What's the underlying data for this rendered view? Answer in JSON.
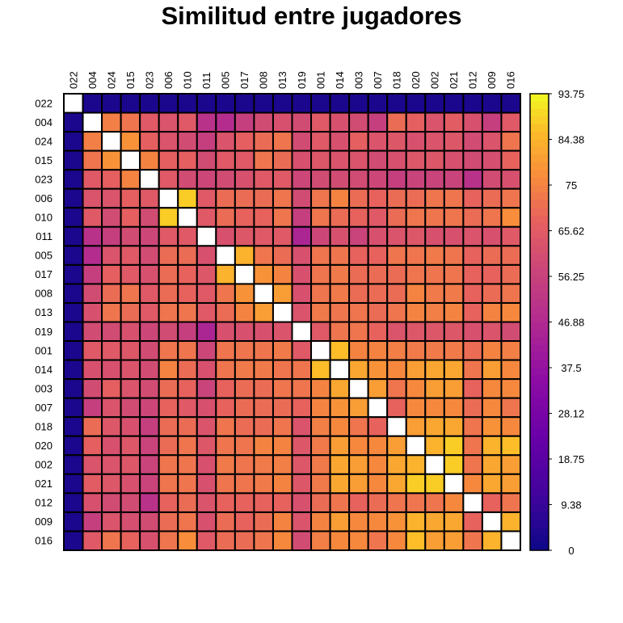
{
  "chart_data": {
    "type": "heatmap",
    "title": "Similitud entre jugadores",
    "labels": [
      "022",
      "004",
      "024",
      "015",
      "023",
      "006",
      "010",
      "011",
      "005",
      "017",
      "008",
      "013",
      "019",
      "001",
      "014",
      "003",
      "007",
      "018",
      "020",
      "002",
      "021",
      "012",
      "009",
      "016"
    ],
    "zlim": [
      0,
      93.75
    ],
    "colorbar_ticks": [
      "93.75",
      "84.38",
      "75",
      "65.62",
      "56.25",
      "46.88",
      "37.5",
      "28.12",
      "18.75",
      "9.38",
      "0"
    ],
    "colorbar_values": [
      93.75,
      84.38,
      75,
      65.62,
      56.25,
      46.88,
      37.5,
      28.12,
      18.75,
      9.38,
      0
    ],
    "diagonal": "blank",
    "values": [
      [
        null,
        3,
        3,
        3,
        3,
        3,
        3,
        3,
        3,
        3,
        3,
        3,
        3,
        3,
        3,
        3,
        3,
        3,
        3,
        3,
        3,
        3,
        3,
        3
      ],
      [
        3,
        null,
        74,
        72,
        65,
        63,
        65,
        50,
        48,
        55,
        60,
        62,
        60,
        65,
        62,
        60,
        55,
        70,
        67,
        63,
        66,
        62,
        55,
        65
      ],
      [
        3,
        74,
        null,
        78,
        67,
        63,
        60,
        55,
        63,
        67,
        70,
        72,
        60,
        65,
        62,
        67,
        63,
        64,
        62,
        63,
        64,
        60,
        63,
        72
      ],
      [
        3,
        72,
        78,
        null,
        75,
        67,
        67,
        60,
        65,
        65,
        72,
        70,
        62,
        64,
        63,
        63,
        60,
        62,
        64,
        64,
        62,
        60,
        61,
        68
      ],
      [
        3,
        65,
        67,
        75,
        null,
        65,
        60,
        58,
        60,
        62,
        65,
        65,
        58,
        60,
        60,
        60,
        58,
        55,
        57,
        57,
        57,
        50,
        60,
        62
      ],
      [
        3,
        63,
        63,
        67,
        65,
        null,
        88,
        65,
        70,
        70,
        70,
        72,
        60,
        72,
        75,
        70,
        68,
        70,
        70,
        72,
        72,
        68,
        70,
        72
      ],
      [
        3,
        65,
        60,
        67,
        60,
        88,
        null,
        65,
        70,
        68,
        68,
        72,
        55,
        72,
        70,
        68,
        65,
        70,
        72,
        72,
        72,
        70,
        72,
        77
      ],
      [
        3,
        50,
        55,
        60,
        58,
        65,
        65,
        null,
        62,
        64,
        65,
        65,
        45,
        58,
        62,
        57,
        62,
        63,
        64,
        62,
        62,
        63,
        62,
        65
      ],
      [
        3,
        48,
        63,
        65,
        60,
        70,
        70,
        62,
        null,
        84,
        72,
        70,
        62,
        72,
        72,
        68,
        68,
        72,
        72,
        73,
        72,
        68,
        70,
        70
      ],
      [
        3,
        55,
        67,
        65,
        62,
        70,
        68,
        64,
        84,
        null,
        78,
        75,
        62,
        72,
        73,
        70,
        70,
        70,
        72,
        72,
        72,
        68,
        68,
        70
      ],
      [
        3,
        60,
        70,
        72,
        65,
        70,
        68,
        65,
        72,
        78,
        null,
        80,
        62,
        72,
        73,
        70,
        70,
        70,
        75,
        73,
        73,
        68,
        70,
        72
      ],
      [
        3,
        62,
        72,
        70,
        65,
        72,
        72,
        65,
        70,
        75,
        80,
        null,
        63,
        73,
        72,
        72,
        70,
        72,
        75,
        74,
        75,
        68,
        75,
        76
      ],
      [
        3,
        60,
        60,
        62,
        58,
        60,
        55,
        45,
        62,
        62,
        62,
        63,
        null,
        65,
        72,
        72,
        68,
        63,
        64,
        64,
        64,
        62,
        63,
        60
      ],
      [
        3,
        65,
        65,
        64,
        60,
        72,
        72,
        58,
        72,
        72,
        72,
        73,
        65,
        null,
        86,
        75,
        75,
        74,
        73,
        73,
        73,
        70,
        75,
        74
      ],
      [
        3,
        62,
        62,
        63,
        60,
        75,
        70,
        62,
        72,
        73,
        73,
        72,
        72,
        86,
        null,
        82,
        78,
        76,
        80,
        82,
        82,
        72,
        80,
        76
      ],
      [
        3,
        60,
        67,
        63,
        60,
        70,
        68,
        57,
        68,
        70,
        70,
        72,
        72,
        75,
        82,
        null,
        80,
        72,
        76,
        80,
        80,
        68,
        76,
        76
      ],
      [
        3,
        55,
        63,
        60,
        58,
        68,
        65,
        62,
        68,
        70,
        70,
        70,
        68,
        75,
        78,
        80,
        null,
        68,
        76,
        76,
        76,
        70,
        76,
        72
      ],
      [
        3,
        70,
        64,
        62,
        55,
        70,
        70,
        63,
        72,
        70,
        70,
        72,
        63,
        74,
        76,
        72,
        68,
        null,
        80,
        82,
        82,
        72,
        78,
        76
      ],
      [
        3,
        67,
        62,
        64,
        57,
        70,
        72,
        64,
        72,
        72,
        75,
        75,
        64,
        73,
        80,
        76,
        76,
        80,
        null,
        84,
        88,
        72,
        84,
        86
      ],
      [
        3,
        63,
        63,
        64,
        57,
        72,
        72,
        62,
        73,
        72,
        73,
        74,
        64,
        73,
        82,
        80,
        76,
        82,
        84,
        null,
        88,
        72,
        82,
        80
      ],
      [
        3,
        66,
        64,
        62,
        57,
        72,
        72,
        62,
        72,
        72,
        73,
        75,
        64,
        73,
        82,
        80,
        76,
        82,
        88,
        88,
        null,
        76,
        82,
        80
      ],
      [
        3,
        62,
        60,
        60,
        50,
        68,
        70,
        63,
        68,
        68,
        68,
        68,
        62,
        70,
        72,
        68,
        70,
        72,
        72,
        72,
        76,
        null,
        68,
        72
      ],
      [
        3,
        55,
        63,
        61,
        60,
        70,
        72,
        62,
        70,
        68,
        70,
        75,
        63,
        75,
        80,
        76,
        76,
        78,
        84,
        82,
        82,
        68,
        null,
        84
      ],
      [
        3,
        65,
        72,
        68,
        62,
        72,
        77,
        65,
        70,
        70,
        72,
        76,
        60,
        74,
        76,
        76,
        72,
        76,
        86,
        80,
        80,
        72,
        84,
        null
      ]
    ]
  }
}
